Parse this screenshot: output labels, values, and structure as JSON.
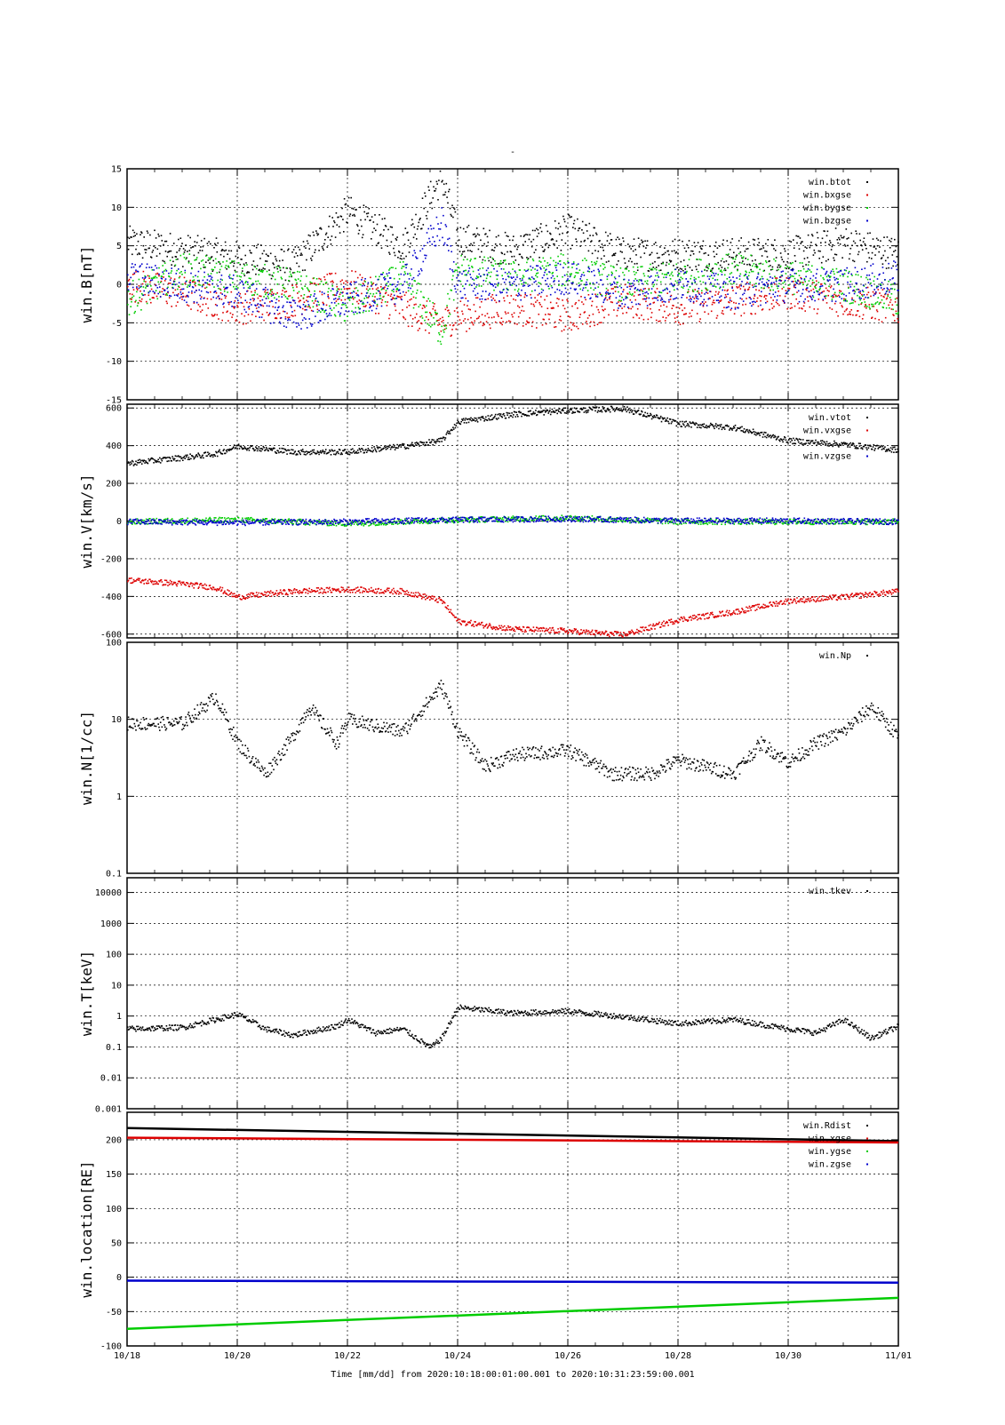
{
  "page": {
    "title": "-",
    "footer": "Time [mm/dd]  from 2020:10:18:00:01:00.001  to  2020:10:31:23:59:00.001"
  },
  "chart_data": [
    {
      "type": "scatter",
      "ylabel": "win.B[nT]",
      "ylim": [
        -15,
        15
      ],
      "yscale": "linear",
      "yticks": [
        -15,
        -10,
        -5,
        0,
        5,
        10,
        15
      ],
      "ytick_labels": [
        "-15",
        "-10",
        "-5",
        "0",
        "5",
        "10",
        "15"
      ],
      "grid": true,
      "legend_position": "top-right",
      "series": [
        {
          "name": "win.btot",
          "color": "#000000",
          "x": [
            "10/18",
            "10/19",
            "10/20",
            "10/21",
            "10/22",
            "10/23",
            "10/23.7",
            "10/24",
            "10/25",
            "10/26",
            "10/27",
            "10/28",
            "10/29",
            "10/30",
            "10/31",
            "11/01"
          ],
          "y": [
            5.5,
            4.5,
            3.5,
            2.5,
            9.5,
            5,
            14,
            6,
            4.5,
            7,
            4,
            4,
            4,
            4,
            5.5,
            4
          ]
        },
        {
          "name": "win.bxgse",
          "color": "#dd0000",
          "x": [
            "10/18",
            "10/19",
            "10/20",
            "10/21",
            "10/22",
            "10/23",
            "10/23.7",
            "10/24",
            "10/25",
            "10/26",
            "10/27",
            "10/28",
            "10/29",
            "10/30",
            "10/31",
            "11/01"
          ],
          "y": [
            0,
            -1,
            -3,
            -2,
            0,
            -3,
            -5,
            -4,
            -3,
            -4,
            -2,
            -3,
            -2,
            -1,
            -2,
            -3
          ]
        },
        {
          "name": "win.bygse",
          "color": "#00cc00",
          "x": [
            "10/18",
            "10/19",
            "10/20",
            "10/21",
            "10/22",
            "10/23",
            "10/23.7",
            "10/24",
            "10/25",
            "10/26",
            "10/27",
            "10/28",
            "10/29",
            "10/30",
            "10/31",
            "11/01"
          ],
          "y": [
            -2,
            2,
            1,
            0,
            -3,
            1,
            -6,
            2,
            1,
            2,
            0,
            1,
            2,
            1,
            0,
            -2
          ]
        },
        {
          "name": "win.bzgse",
          "color": "#0000cc",
          "x": [
            "10/18",
            "10/19",
            "10/20",
            "10/21",
            "10/22",
            "10/23",
            "10/23.7",
            "10/24",
            "10/25",
            "10/26",
            "10/27",
            "10/28",
            "10/29",
            "10/30",
            "10/31",
            "11/01"
          ],
          "y": [
            1,
            0,
            -1,
            -4,
            -2,
            0,
            8,
            0,
            0,
            1,
            -1,
            0,
            -1,
            0,
            0,
            1
          ]
        }
      ]
    },
    {
      "type": "scatter",
      "ylabel": "win.V[km/s]",
      "ylim": [
        -620,
        620
      ],
      "yscale": "linear",
      "yticks": [
        -600,
        -400,
        -200,
        0,
        200,
        400,
        600
      ],
      "ytick_labels": [
        "-600",
        "-400",
        "-200",
        "0",
        "200",
        "400",
        "600"
      ],
      "grid": true,
      "legend_position": "top-right",
      "series": [
        {
          "name": "win.vtot",
          "color": "#000000",
          "x": [
            "10/18",
            "10/19",
            "10/19.6",
            "10/20",
            "10/21",
            "10/22",
            "10/23",
            "10/23.7",
            "10/24",
            "10/25",
            "10/26",
            "10/27",
            "10/28",
            "10/29",
            "10/30",
            "10/31",
            "11/01"
          ],
          "y": [
            310,
            340,
            360,
            400,
            370,
            370,
            400,
            430,
            530,
            570,
            590,
            600,
            520,
            500,
            430,
            410,
            380
          ]
        },
        {
          "name": "win.vxgse",
          "color": "#dd0000",
          "x": [
            "10/18",
            "10/19",
            "10/19.6",
            "10/20",
            "10/21",
            "10/22",
            "10/23",
            "10/23.7",
            "10/24",
            "10/25",
            "10/26",
            "10/27",
            "10/28",
            "10/29",
            "10/30",
            "10/31",
            "11/01"
          ],
          "y": [
            -310,
            -330,
            -350,
            -400,
            -370,
            -360,
            -370,
            -420,
            -530,
            -570,
            -580,
            -600,
            -520,
            -480,
            -420,
            -400,
            -370
          ]
        },
        {
          "name": "",
          "color": "#00cc00",
          "x": [
            "10/18",
            "10/20",
            "10/22",
            "10/24",
            "10/26",
            "10/28",
            "10/30",
            "11/01"
          ],
          "y": [
            0,
            10,
            -10,
            10,
            20,
            0,
            0,
            0
          ]
        },
        {
          "name": "win.vzgse",
          "color": "#0000cc",
          "x": [
            "10/18",
            "10/20",
            "10/22",
            "10/24",
            "10/26",
            "10/28",
            "10/30",
            "11/01"
          ],
          "y": [
            0,
            -5,
            0,
            10,
            15,
            5,
            5,
            0
          ]
        }
      ]
    },
    {
      "type": "scatter",
      "ylabel": "win.N[1/cc]",
      "ylim": [
        0.1,
        100
      ],
      "yscale": "log",
      "yticks": [
        0.1,
        1,
        10,
        100
      ],
      "ytick_labels": [
        "0.1",
        "1",
        "10",
        "100"
      ],
      "grid": true,
      "legend_position": "top-right",
      "series": [
        {
          "name": "win.Np",
          "color": "#000000",
          "x": [
            "10/18",
            "10/19",
            "10/19.6",
            "10/20",
            "10/20.5",
            "10/21",
            "10/21.3",
            "10/21.8",
            "10/22",
            "10/23",
            "10/23.7",
            "10/24",
            "10/24.5",
            "10/25",
            "10/26",
            "10/26.8",
            "10/27.5",
            "10/28",
            "10/29",
            "10/29.5",
            "10/30",
            "10/30.5",
            "10/31",
            "10/31.5",
            "11/01"
          ],
          "y": [
            9,
            9,
            20,
            5,
            2,
            6,
            15,
            5,
            10,
            7,
            28,
            7,
            2.5,
            3.5,
            4,
            2,
            2,
            3,
            2,
            5,
            2.8,
            5,
            7,
            15,
            6
          ]
        }
      ]
    },
    {
      "type": "scatter",
      "ylabel": "win.T[keV]",
      "ylim": [
        0.001,
        30000
      ],
      "yscale": "log",
      "yticks": [
        0.001,
        0.01,
        0.1,
        1,
        10,
        100,
        1000,
        10000
      ],
      "ytick_labels": [
        "0.001",
        "0.01",
        "0.1",
        "1",
        "10",
        "100",
        "1000",
        "10000"
      ],
      "grid": true,
      "legend_position": "top-right",
      "series": [
        {
          "name": "win.tkev",
          "color": "#000000",
          "x": [
            "10/18",
            "10/19",
            "10/20",
            "10/20.5",
            "10/21",
            "10/21.8",
            "10/22",
            "10/22.5",
            "10/23",
            "10/23.5",
            "10/23.7",
            "10/24",
            "10/25",
            "10/26",
            "10/27",
            "10/28",
            "10/29",
            "10/30",
            "10/30.5",
            "10/31",
            "10/31.5",
            "11/01"
          ],
          "y": [
            0.4,
            0.45,
            1.2,
            0.4,
            0.25,
            0.5,
            0.8,
            0.3,
            0.4,
            0.1,
            0.2,
            2,
            1.3,
            1.5,
            1,
            0.6,
            0.8,
            0.4,
            0.3,
            0.8,
            0.2,
            0.5
          ]
        }
      ]
    },
    {
      "type": "line",
      "ylabel": "win.location[RE]",
      "ylim": [
        -100,
        240
      ],
      "yscale": "linear",
      "yticks": [
        -100,
        -50,
        0,
        50,
        100,
        150,
        200
      ],
      "ytick_labels": [
        "-100",
        "-50",
        "0",
        "50",
        "100",
        "150",
        "200"
      ],
      "grid": true,
      "legend_position": "top-right",
      "series": [
        {
          "name": "win.Rdist",
          "color": "#000000",
          "x": [
            "10/18",
            "11/01"
          ],
          "y": [
            217,
            198
          ]
        },
        {
          "name": "win.xgse",
          "color": "#dd0000",
          "x": [
            "10/18",
            "11/01"
          ],
          "y": [
            203,
            196
          ]
        },
        {
          "name": "win.ygse",
          "color": "#00cc00",
          "x": [
            "10/18",
            "11/01"
          ],
          "y": [
            -75,
            -30
          ]
        },
        {
          "name": "win.zgse",
          "color": "#0000cc",
          "x": [
            "10/18",
            "11/01"
          ],
          "y": [
            -5,
            -8
          ]
        }
      ]
    }
  ],
  "xaxis": {
    "range": [
      "10/18",
      "11/01"
    ],
    "ticks": [
      "10/18",
      "10/20",
      "10/22",
      "10/24",
      "10/26",
      "10/28",
      "10/30",
      "11/01"
    ]
  }
}
